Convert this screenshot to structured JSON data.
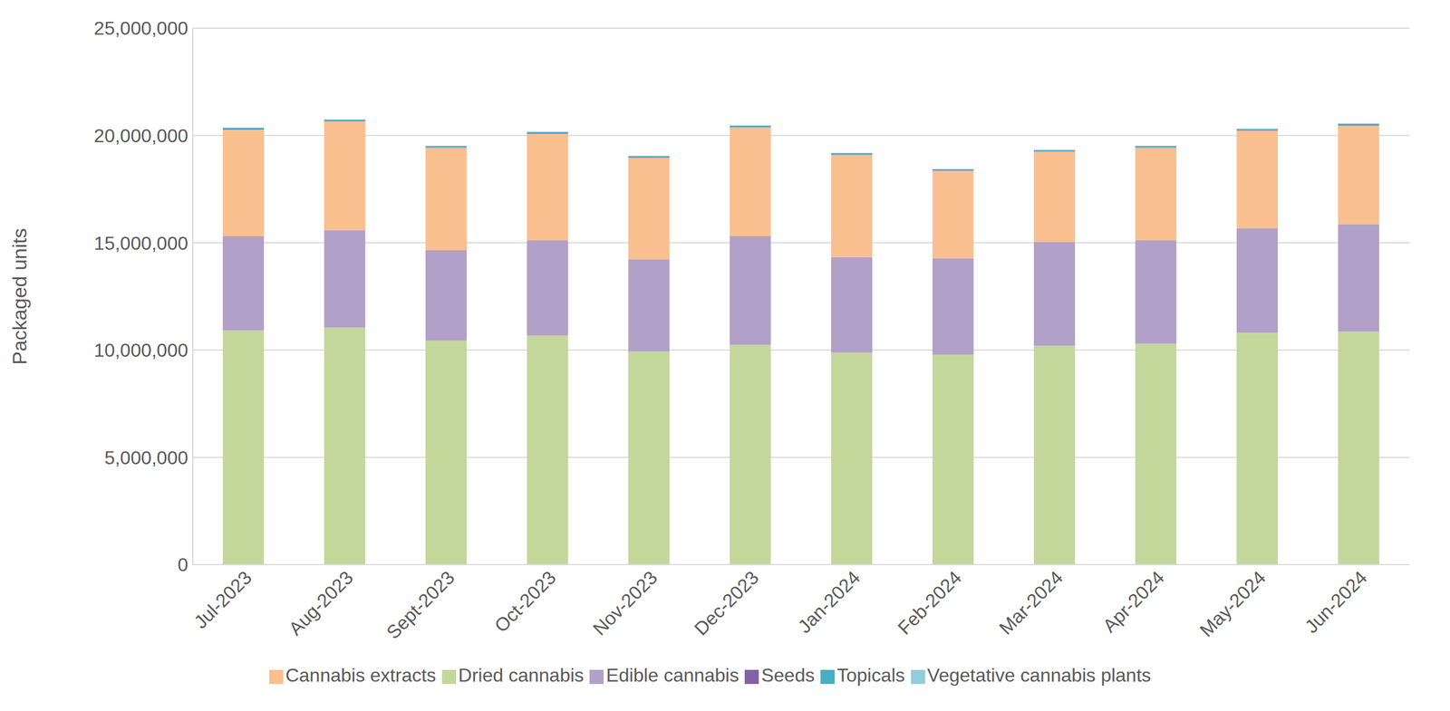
{
  "chart_data": {
    "type": "bar",
    "stacked": true,
    "grid": true,
    "legend": "bottom",
    "y_label": "Packaged units",
    "categories": [
      "Jul-2023",
      "Aug-2023",
      "Sept-2023",
      "Oct-2023",
      "Nov-2023",
      "Dec-2023",
      "Jan-2024",
      "Feb-2024",
      "Mar-2024",
      "Apr-2024",
      "May-2024",
      "Jun-2024"
    ],
    "ylim": [
      0,
      25000000
    ],
    "yticks": [
      0,
      {
        "value": 5000000,
        "label": "5,000,000"
      },
      {
        "value": 10000000,
        "label": "10,000,000"
      },
      {
        "value": 15000000,
        "label": "15,000,000"
      },
      {
        "value": 20000000,
        "label": "20,000,000"
      },
      {
        "value": 25000000,
        "label": "25,000,000"
      }
    ],
    "series": [
      {
        "name": "Dried cannabis",
        "color": "#c4d79b",
        "values": [
          10910000,
          11050000,
          10440000,
          10670000,
          9930000,
          10250000,
          9880000,
          9780000,
          10210000,
          10300000,
          10810000,
          10860000
        ]
      },
      {
        "name": "Edible cannabis",
        "color": "#b1a0c7",
        "values": [
          4400000,
          4540000,
          4210000,
          4450000,
          4300000,
          5060000,
          4450000,
          4500000,
          4820000,
          4820000,
          4870000,
          5010000
        ]
      },
      {
        "name": "Cannabis extracts",
        "color": "#fabf8f",
        "values": [
          4960000,
          5060000,
          4780000,
          4960000,
          4730000,
          5060000,
          4770000,
          4070000,
          4210000,
          4310000,
          4540000,
          4590000
        ]
      },
      {
        "name": "Seeds",
        "color": "#8064a2",
        "values": [
          20000,
          20000,
          18000,
          18000,
          16000,
          18000,
          16000,
          15000,
          17000,
          18000,
          19000,
          20000
        ]
      },
      {
        "name": "Topicals",
        "color": "#4bacc6",
        "values": [
          70000,
          72000,
          68000,
          70000,
          66000,
          72000,
          64000,
          62000,
          66000,
          68000,
          70000,
          72000
        ]
      },
      {
        "name": "Vegetative cannabis plants",
        "color": "#92cddc",
        "values": [
          12000,
          11000,
          9000,
          8000,
          6000,
          5000,
          5000,
          6000,
          8000,
          10000,
          12000,
          13000
        ]
      }
    ]
  }
}
